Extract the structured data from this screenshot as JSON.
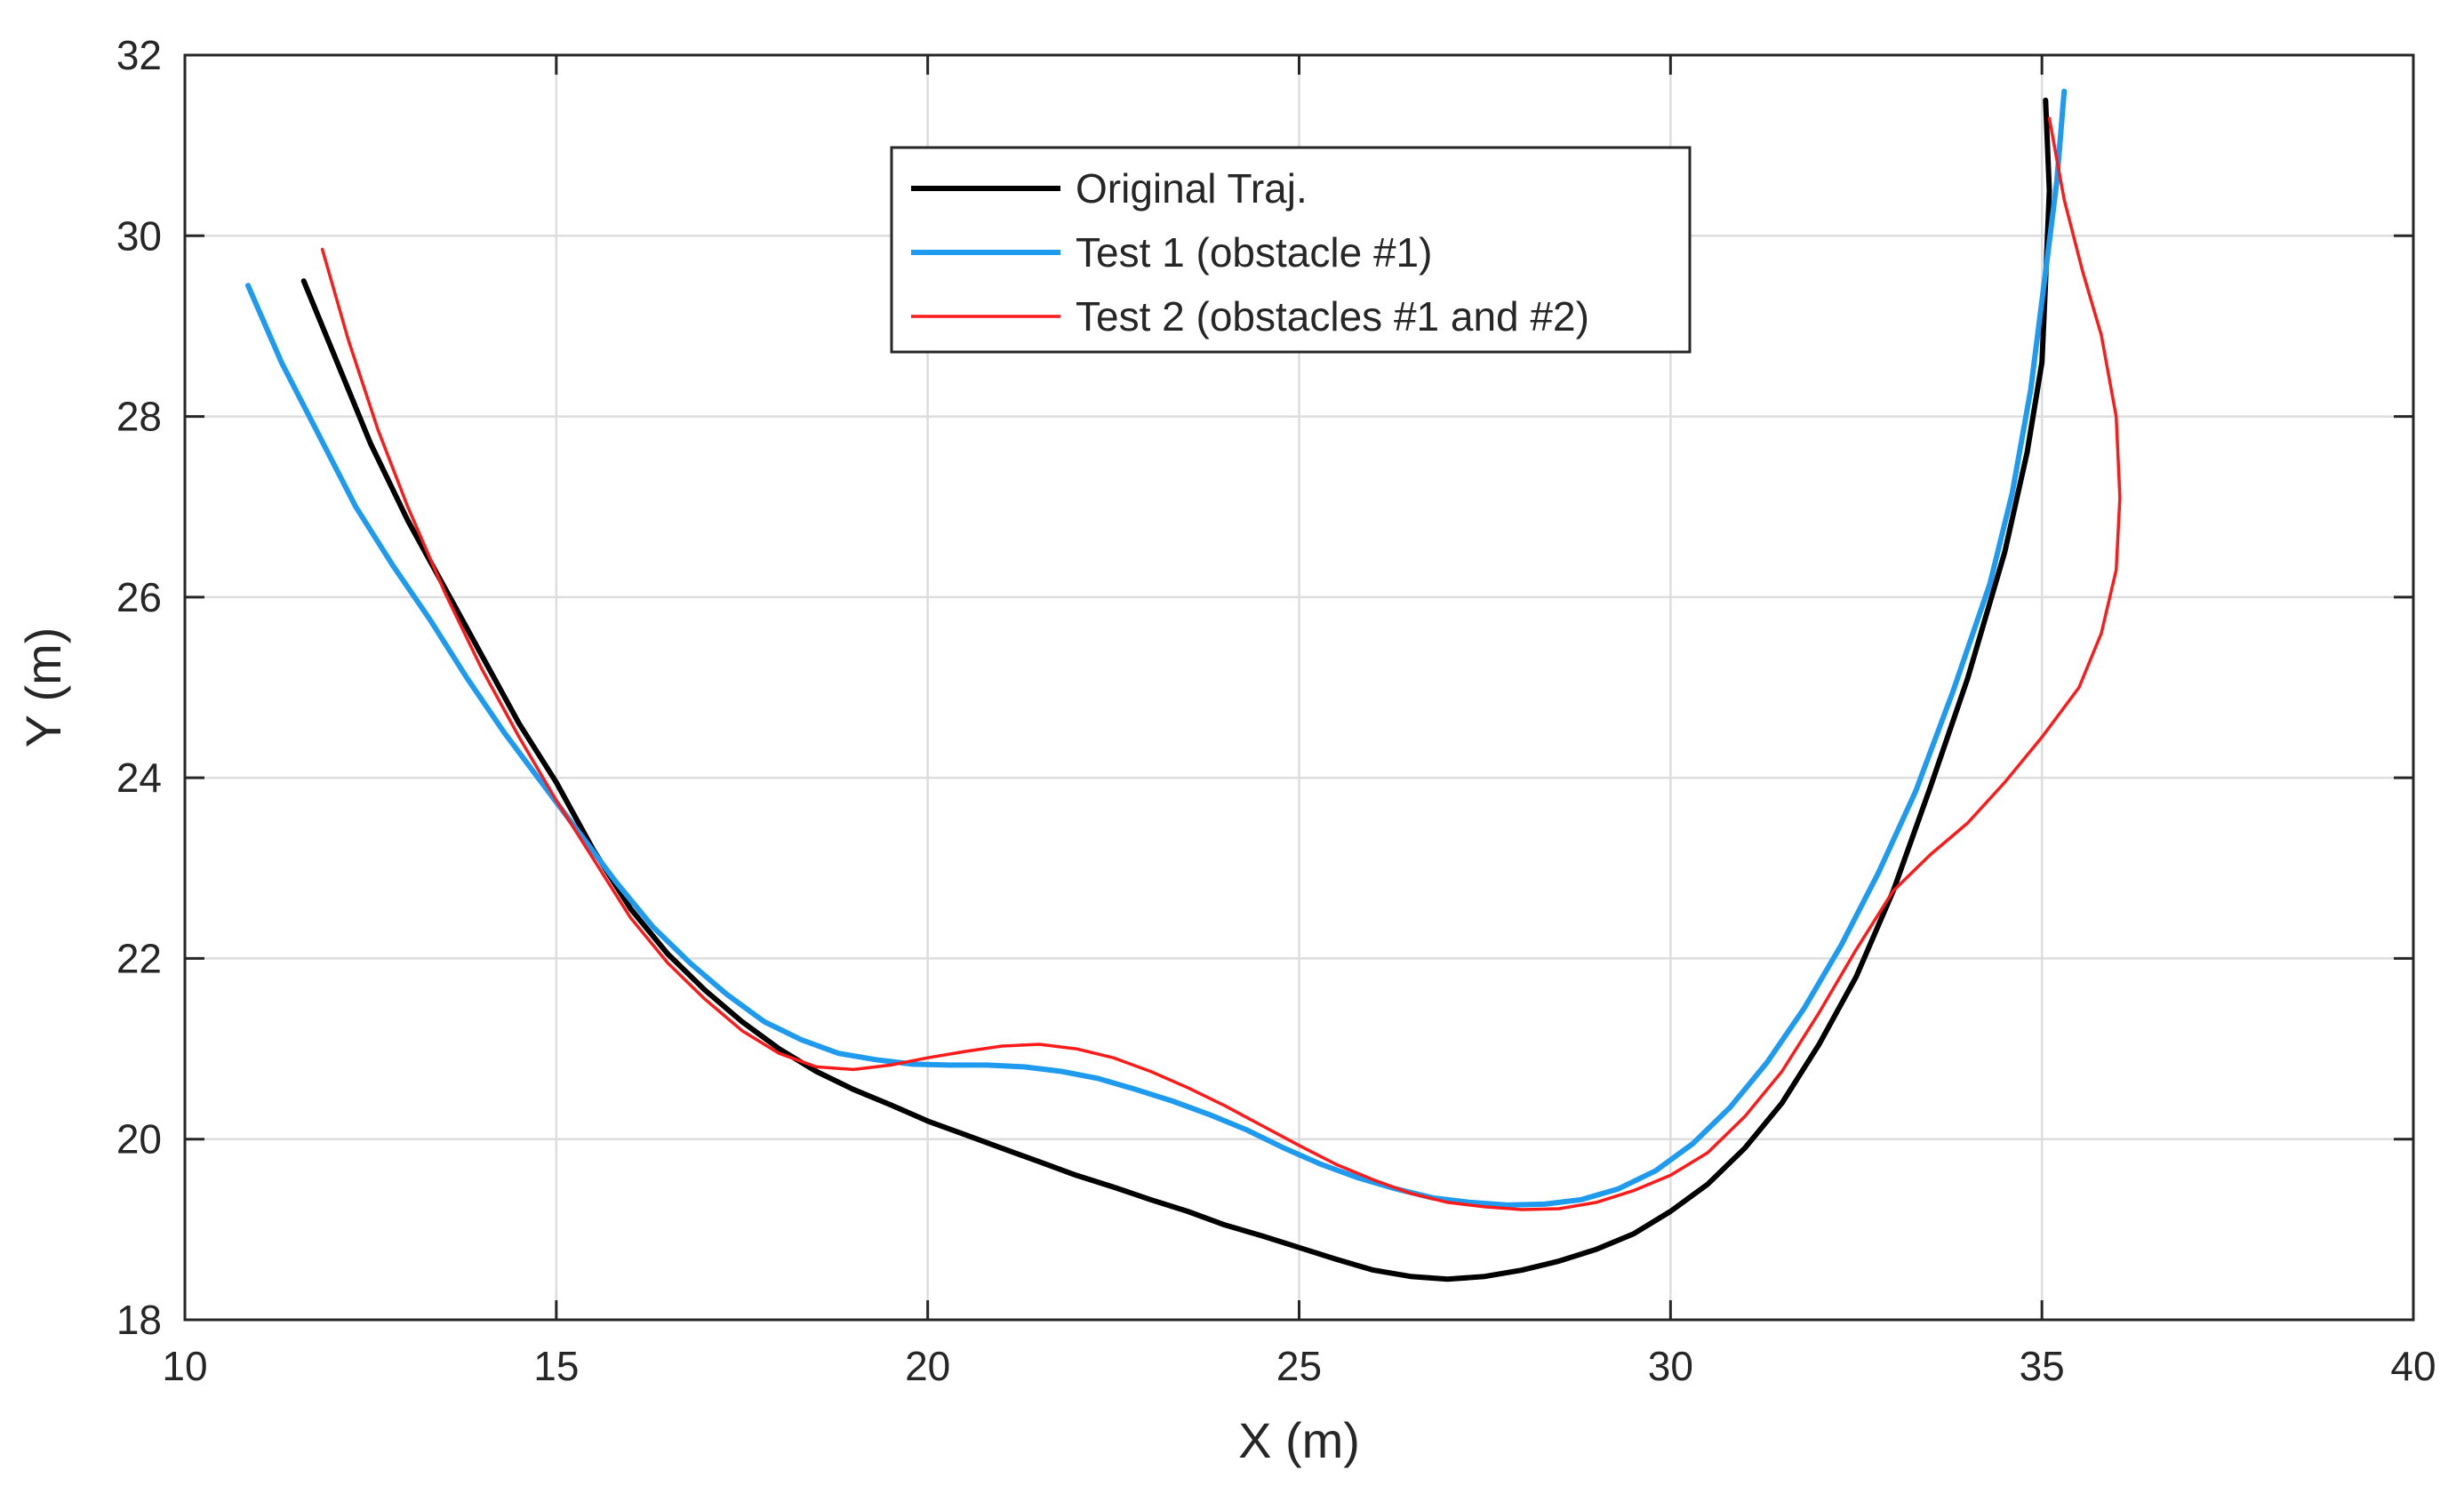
{
  "chart_data": {
    "type": "line",
    "title": "",
    "xlabel": "X (m)",
    "ylabel": "Y (m)",
    "xlim": [
      10,
      40
    ],
    "ylim": [
      18,
      32
    ],
    "xticks": [
      "10",
      "15",
      "20",
      "25",
      "30",
      "35",
      "40"
    ],
    "yticks": [
      "18",
      "20",
      "22",
      "24",
      "26",
      "28",
      "30",
      "32"
    ],
    "grid": true,
    "legend_position": "top-center",
    "series": [
      {
        "name": "Original Traj.",
        "color": "#000000",
        "points": [
          [
            11.6,
            29.5
          ],
          [
            12.0,
            28.7
          ],
          [
            12.5,
            27.7
          ],
          [
            13.0,
            26.85
          ],
          [
            13.5,
            26.1
          ],
          [
            14.0,
            25.35
          ],
          [
            14.5,
            24.6
          ],
          [
            15.0,
            23.95
          ],
          [
            15.5,
            23.2
          ],
          [
            16.0,
            22.55
          ],
          [
            16.5,
            22.05
          ],
          [
            17.0,
            21.65
          ],
          [
            17.5,
            21.3
          ],
          [
            18.0,
            21.0
          ],
          [
            18.5,
            20.75
          ],
          [
            19.0,
            20.55
          ],
          [
            19.5,
            20.38
          ],
          [
            20.0,
            20.2
          ],
          [
            20.5,
            20.05
          ],
          [
            21.0,
            19.9
          ],
          [
            21.5,
            19.75
          ],
          [
            22.0,
            19.6
          ],
          [
            22.5,
            19.47
          ],
          [
            23.0,
            19.33
          ],
          [
            23.5,
            19.2
          ],
          [
            24.0,
            19.05
          ],
          [
            24.5,
            18.93
          ],
          [
            25.0,
            18.8
          ],
          [
            25.5,
            18.67
          ],
          [
            26.0,
            18.55
          ],
          [
            26.5,
            18.48
          ],
          [
            27.0,
            18.45
          ],
          [
            27.5,
            18.48
          ],
          [
            28.0,
            18.55
          ],
          [
            28.5,
            18.65
          ],
          [
            29.0,
            18.78
          ],
          [
            29.5,
            18.95
          ],
          [
            30.0,
            19.2
          ],
          [
            30.5,
            19.5
          ],
          [
            31.0,
            19.9
          ],
          [
            31.5,
            20.4
          ],
          [
            32.0,
            21.05
          ],
          [
            32.5,
            21.8
          ],
          [
            33.0,
            22.75
          ],
          [
            33.5,
            23.9
          ],
          [
            34.0,
            25.1
          ],
          [
            34.5,
            26.5
          ],
          [
            34.8,
            27.6
          ],
          [
            35.0,
            28.6
          ],
          [
            35.05,
            29.5
          ],
          [
            35.1,
            30.5
          ],
          [
            35.05,
            31.5
          ]
        ]
      },
      {
        "name": "Test 1 (obstacle #1)",
        "color": "#1e9bef",
        "points": [
          [
            10.85,
            29.45
          ],
          [
            11.3,
            28.6
          ],
          [
            11.8,
            27.8
          ],
          [
            12.3,
            27.0
          ],
          [
            12.8,
            26.35
          ],
          [
            13.3,
            25.75
          ],
          [
            13.8,
            25.1
          ],
          [
            14.3,
            24.5
          ],
          [
            14.8,
            23.95
          ],
          [
            15.3,
            23.4
          ],
          [
            15.8,
            22.85
          ],
          [
            16.3,
            22.35
          ],
          [
            16.8,
            21.95
          ],
          [
            17.3,
            21.6
          ],
          [
            17.8,
            21.3
          ],
          [
            18.3,
            21.1
          ],
          [
            18.8,
            20.95
          ],
          [
            19.3,
            20.88
          ],
          [
            19.8,
            20.83
          ],
          [
            20.3,
            20.82
          ],
          [
            20.8,
            20.82
          ],
          [
            21.3,
            20.8
          ],
          [
            21.8,
            20.75
          ],
          [
            22.3,
            20.67
          ],
          [
            22.8,
            20.55
          ],
          [
            23.3,
            20.42
          ],
          [
            23.8,
            20.27
          ],
          [
            24.3,
            20.1
          ],
          [
            24.8,
            19.9
          ],
          [
            25.3,
            19.72
          ],
          [
            25.8,
            19.57
          ],
          [
            26.3,
            19.45
          ],
          [
            26.8,
            19.35
          ],
          [
            27.3,
            19.3
          ],
          [
            27.8,
            19.27
          ],
          [
            28.3,
            19.28
          ],
          [
            28.8,
            19.33
          ],
          [
            29.3,
            19.45
          ],
          [
            29.8,
            19.65
          ],
          [
            30.3,
            19.95
          ],
          [
            30.8,
            20.35
          ],
          [
            31.3,
            20.85
          ],
          [
            31.8,
            21.45
          ],
          [
            32.3,
            22.15
          ],
          [
            32.8,
            22.95
          ],
          [
            33.3,
            23.85
          ],
          [
            33.8,
            24.95
          ],
          [
            34.3,
            26.15
          ],
          [
            34.6,
            27.15
          ],
          [
            34.85,
            28.3
          ],
          [
            35.05,
            29.6
          ],
          [
            35.2,
            30.6
          ],
          [
            35.3,
            31.6
          ]
        ]
      },
      {
        "name": "Test 2 (obstacles #1 and #2)",
        "color": "#ff1a1a",
        "points": [
          [
            11.85,
            29.85
          ],
          [
            12.2,
            28.85
          ],
          [
            12.6,
            27.85
          ],
          [
            13.0,
            27.0
          ],
          [
            13.5,
            26.05
          ],
          [
            14.0,
            25.2
          ],
          [
            14.5,
            24.45
          ],
          [
            15.0,
            23.75
          ],
          [
            15.5,
            23.1
          ],
          [
            16.0,
            22.45
          ],
          [
            16.5,
            21.95
          ],
          [
            17.0,
            21.55
          ],
          [
            17.5,
            21.2
          ],
          [
            18.0,
            20.95
          ],
          [
            18.5,
            20.8
          ],
          [
            19.0,
            20.77
          ],
          [
            19.5,
            20.82
          ],
          [
            20.0,
            20.9
          ],
          [
            20.5,
            20.97
          ],
          [
            21.0,
            21.03
          ],
          [
            21.5,
            21.05
          ],
          [
            22.0,
            21.0
          ],
          [
            22.5,
            20.9
          ],
          [
            23.0,
            20.75
          ],
          [
            23.5,
            20.57
          ],
          [
            24.0,
            20.37
          ],
          [
            24.5,
            20.15
          ],
          [
            25.0,
            19.93
          ],
          [
            25.5,
            19.72
          ],
          [
            26.0,
            19.55
          ],
          [
            26.5,
            19.4
          ],
          [
            27.0,
            19.3
          ],
          [
            27.5,
            19.25
          ],
          [
            28.0,
            19.22
          ],
          [
            28.5,
            19.23
          ],
          [
            29.0,
            19.3
          ],
          [
            29.5,
            19.43
          ],
          [
            30.0,
            19.6
          ],
          [
            30.5,
            19.85
          ],
          [
            31.0,
            20.25
          ],
          [
            31.5,
            20.75
          ],
          [
            32.0,
            21.4
          ],
          [
            32.5,
            22.1
          ],
          [
            33.0,
            22.75
          ],
          [
            33.5,
            23.15
          ],
          [
            34.0,
            23.5
          ],
          [
            34.5,
            23.95
          ],
          [
            35.0,
            24.45
          ],
          [
            35.5,
            25.0
          ],
          [
            35.8,
            25.6
          ],
          [
            36.0,
            26.3
          ],
          [
            36.05,
            27.1
          ],
          [
            36.0,
            28.0
          ],
          [
            35.8,
            28.9
          ],
          [
            35.55,
            29.6
          ],
          [
            35.3,
            30.4
          ],
          [
            35.1,
            31.3
          ]
        ]
      }
    ]
  }
}
